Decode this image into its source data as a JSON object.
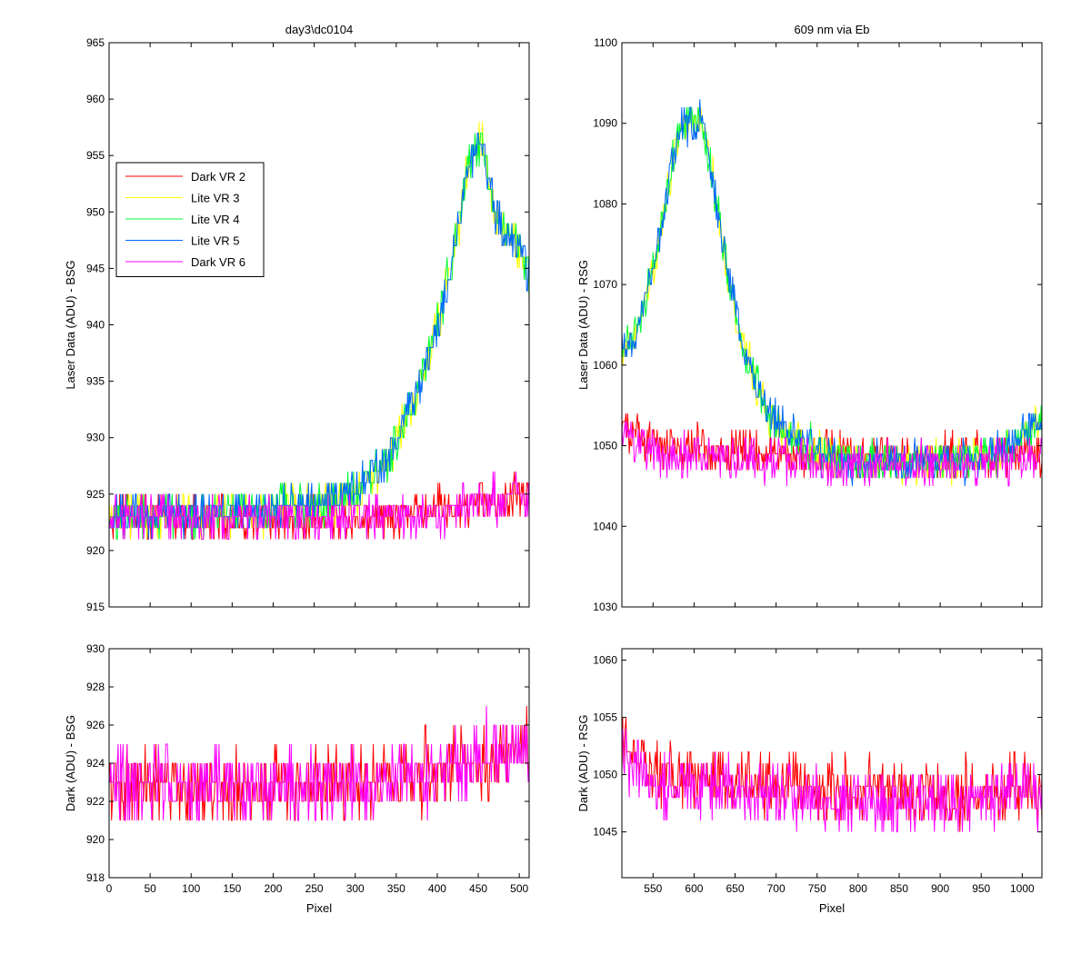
{
  "chart_data": [
    {
      "id": "top-left",
      "type": "line",
      "title": "day3\\dc0104",
      "xlabel": "",
      "ylabel": "Laser Data (ADU) - BSG",
      "xlim": [
        0,
        512
      ],
      "ylim": [
        915,
        965
      ],
      "xticks": [
        0,
        50,
        100,
        150,
        200,
        250,
        300,
        350,
        400,
        450,
        500
      ],
      "xticklabels_visible": false,
      "yticks": [
        915,
        920,
        925,
        930,
        935,
        940,
        945,
        950,
        955,
        960,
        965
      ],
      "grid": false,
      "legend": {
        "placement": "upper-left",
        "entries": [
          "Dark VR 2",
          "Lite VR 3",
          "Lite VR 4",
          "Lite VR 5",
          "Dark VR 6"
        ]
      },
      "series": [
        {
          "name": "Dark VR 2",
          "color": "#ff0000",
          "kind": "dark",
          "noise": 1.4,
          "points": [
            [
              0,
              923
            ],
            [
              100,
              922.8
            ],
            [
              200,
              922.8
            ],
            [
              300,
              923
            ],
            [
              400,
              923.5
            ],
            [
              450,
              924.2
            ],
            [
              512,
              925
            ]
          ]
        },
        {
          "name": "Lite VR 3",
          "color": "#ffff00",
          "kind": "lite",
          "noise": 1.4,
          "points": [
            [
              0,
              923
            ],
            [
              150,
              923.3
            ],
            [
              250,
              924
            ],
            [
              300,
              925
            ],
            [
              340,
              928
            ],
            [
              370,
              933
            ],
            [
              400,
              940
            ],
            [
              420,
              946
            ],
            [
              435,
              953
            ],
            [
              445,
              956
            ],
            [
              455,
              956
            ],
            [
              470,
              950
            ],
            [
              485,
              948
            ],
            [
              500,
              947
            ],
            [
              512,
              944
            ]
          ]
        },
        {
          "name": "Lite VR 4",
          "color": "#00ff33",
          "kind": "lite",
          "noise": 1.4,
          "points": [
            [
              0,
              923
            ],
            [
              150,
              923.3
            ],
            [
              250,
              924
            ],
            [
              300,
              925
            ],
            [
              340,
              928
            ],
            [
              370,
              933
            ],
            [
              400,
              940
            ],
            [
              420,
              946
            ],
            [
              435,
              953
            ],
            [
              445,
              956
            ],
            [
              455,
              956
            ],
            [
              470,
              950
            ],
            [
              485,
              948
            ],
            [
              500,
              947
            ],
            [
              512,
              944
            ]
          ]
        },
        {
          "name": "Lite VR 5",
          "color": "#0066ff",
          "kind": "lite",
          "noise": 1.4,
          "points": [
            [
              0,
              923
            ],
            [
              150,
              923.3
            ],
            [
              250,
              924
            ],
            [
              300,
              925
            ],
            [
              340,
              928
            ],
            [
              370,
              933
            ],
            [
              400,
              940
            ],
            [
              420,
              946
            ],
            [
              435,
              953
            ],
            [
              445,
              956
            ],
            [
              455,
              956
            ],
            [
              470,
              950
            ],
            [
              485,
              948
            ],
            [
              500,
              947
            ],
            [
              512,
              944
            ]
          ]
        },
        {
          "name": "Dark VR 6",
          "color": "#ff00ff",
          "kind": "dark",
          "noise": 1.4,
          "points": [
            [
              0,
              923
            ],
            [
              100,
              922.8
            ],
            [
              200,
              922.8
            ],
            [
              300,
              923
            ],
            [
              400,
              923.5
            ],
            [
              450,
              924.2
            ],
            [
              512,
              925
            ]
          ]
        }
      ]
    },
    {
      "id": "top-right",
      "type": "line",
      "title": "609 nm via Eb",
      "xlabel": "",
      "ylabel": "Laser Data (ADU) - RSG",
      "xlim": [
        512,
        1024
      ],
      "ylim": [
        1030,
        1100
      ],
      "xticks": [
        550,
        600,
        650,
        700,
        750,
        800,
        850,
        900,
        950,
        1000
      ],
      "xticklabels_visible": false,
      "yticks": [
        1030,
        1040,
        1050,
        1060,
        1070,
        1080,
        1090,
        1100
      ],
      "grid": false,
      "series": [
        {
          "name": "Dark VR 2",
          "color": "#ff0000",
          "kind": "dark",
          "noise": 2.0,
          "points": [
            [
              512,
              1053
            ],
            [
              530,
              1051
            ],
            [
              560,
              1050
            ],
            [
              650,
              1049.5
            ],
            [
              750,
              1049
            ],
            [
              850,
              1048.5
            ],
            [
              950,
              1048.5
            ],
            [
              1024,
              1049
            ]
          ]
        },
        {
          "name": "Lite VR 3",
          "color": "#ffff00",
          "kind": "lite",
          "noise": 1.8,
          "points": [
            [
              512,
              1062
            ],
            [
              530,
              1064
            ],
            [
              550,
              1072
            ],
            [
              565,
              1080
            ],
            [
              575,
              1086
            ],
            [
              585,
              1090
            ],
            [
              600,
              1090
            ],
            [
              610,
              1090
            ],
            [
              625,
              1082
            ],
            [
              640,
              1072
            ],
            [
              660,
              1062
            ],
            [
              690,
              1054
            ],
            [
              730,
              1050
            ],
            [
              800,
              1048
            ],
            [
              900,
              1048
            ],
            [
              970,
              1049
            ],
            [
              1024,
              1053
            ]
          ]
        },
        {
          "name": "Lite VR 4",
          "color": "#00ff33",
          "kind": "lite",
          "noise": 1.8,
          "points": [
            [
              512,
              1062
            ],
            [
              530,
              1064
            ],
            [
              550,
              1072
            ],
            [
              565,
              1080
            ],
            [
              575,
              1086
            ],
            [
              585,
              1090
            ],
            [
              600,
              1090
            ],
            [
              610,
              1090
            ],
            [
              625,
              1082
            ],
            [
              640,
              1072
            ],
            [
              660,
              1062
            ],
            [
              690,
              1054
            ],
            [
              730,
              1050
            ],
            [
              800,
              1048
            ],
            [
              900,
              1048
            ],
            [
              970,
              1049
            ],
            [
              1024,
              1053
            ]
          ]
        },
        {
          "name": "Lite VR 5",
          "color": "#0066ff",
          "kind": "lite",
          "noise": 1.8,
          "points": [
            [
              512,
              1062
            ],
            [
              530,
              1064
            ],
            [
              550,
              1072
            ],
            [
              565,
              1080
            ],
            [
              575,
              1086
            ],
            [
              585,
              1090
            ],
            [
              600,
              1090
            ],
            [
              610,
              1090
            ],
            [
              625,
              1082
            ],
            [
              640,
              1072
            ],
            [
              660,
              1062
            ],
            [
              690,
              1054
            ],
            [
              730,
              1050
            ],
            [
              800,
              1048
            ],
            [
              900,
              1048
            ],
            [
              970,
              1049
            ],
            [
              1024,
              1053
            ]
          ]
        },
        {
          "name": "Dark VR 6",
          "color": "#ff00ff",
          "kind": "dark",
          "noise": 2.0,
          "points": [
            [
              512,
              1052
            ],
            [
              530,
              1050
            ],
            [
              560,
              1049
            ],
            [
              650,
              1048.5
            ],
            [
              750,
              1048
            ],
            [
              850,
              1047.5
            ],
            [
              950,
              1048
            ],
            [
              1024,
              1048.5
            ]
          ]
        }
      ]
    },
    {
      "id": "bottom-left",
      "type": "line",
      "title": "",
      "xlabel": "Pixel",
      "ylabel": "Dark (ADU) - BSG",
      "xlim": [
        0,
        512
      ],
      "ylim": [
        918,
        930
      ],
      "xticks": [
        0,
        50,
        100,
        150,
        200,
        250,
        300,
        350,
        400,
        450,
        500
      ],
      "xticklabels_visible": true,
      "yticks": [
        918,
        920,
        922,
        924,
        926,
        928,
        930
      ],
      "grid": false,
      "series": [
        {
          "name": "Dark VR 2",
          "color": "#ff0000",
          "kind": "dark",
          "noise": 1.4,
          "points": [
            [
              0,
              923
            ],
            [
              100,
              922.8
            ],
            [
              200,
              922.8
            ],
            [
              300,
              923
            ],
            [
              400,
              923.5
            ],
            [
              450,
              924.2
            ],
            [
              512,
              925
            ]
          ]
        },
        {
          "name": "Dark VR 6",
          "color": "#ff00ff",
          "kind": "dark",
          "noise": 1.4,
          "points": [
            [
              0,
              923
            ],
            [
              100,
              922.8
            ],
            [
              200,
              922.8
            ],
            [
              300,
              923
            ],
            [
              400,
              923.5
            ],
            [
              450,
              924.2
            ],
            [
              512,
              925
            ]
          ]
        }
      ]
    },
    {
      "id": "bottom-right",
      "type": "line",
      "title": "",
      "xlabel": "Pixel",
      "ylabel": "Dark (ADU) - RSG",
      "xlim": [
        512,
        1024
      ],
      "ylim": [
        1041,
        1061
      ],
      "xticks": [
        550,
        600,
        650,
        700,
        750,
        800,
        850,
        900,
        950,
        1000
      ],
      "xticklabels_visible": true,
      "yticks": [
        1045,
        1050,
        1055,
        1060
      ],
      "grid": false,
      "series": [
        {
          "name": "Dark VR 2",
          "color": "#ff0000",
          "kind": "dark",
          "noise": 2.0,
          "points": [
            [
              512,
              1053
            ],
            [
              530,
              1051
            ],
            [
              560,
              1050
            ],
            [
              650,
              1049.5
            ],
            [
              750,
              1049
            ],
            [
              850,
              1048.5
            ],
            [
              950,
              1048.5
            ],
            [
              1024,
              1049
            ]
          ]
        },
        {
          "name": "Dark VR 6",
          "color": "#ff00ff",
          "kind": "dark",
          "noise": 2.0,
          "points": [
            [
              512,
              1052
            ],
            [
              530,
              1050
            ],
            [
              560,
              1049
            ],
            [
              650,
              1048.5
            ],
            [
              750,
              1048
            ],
            [
              850,
              1047.5
            ],
            [
              950,
              1048
            ],
            [
              1024,
              1048.5
            ]
          ]
        }
      ]
    }
  ]
}
